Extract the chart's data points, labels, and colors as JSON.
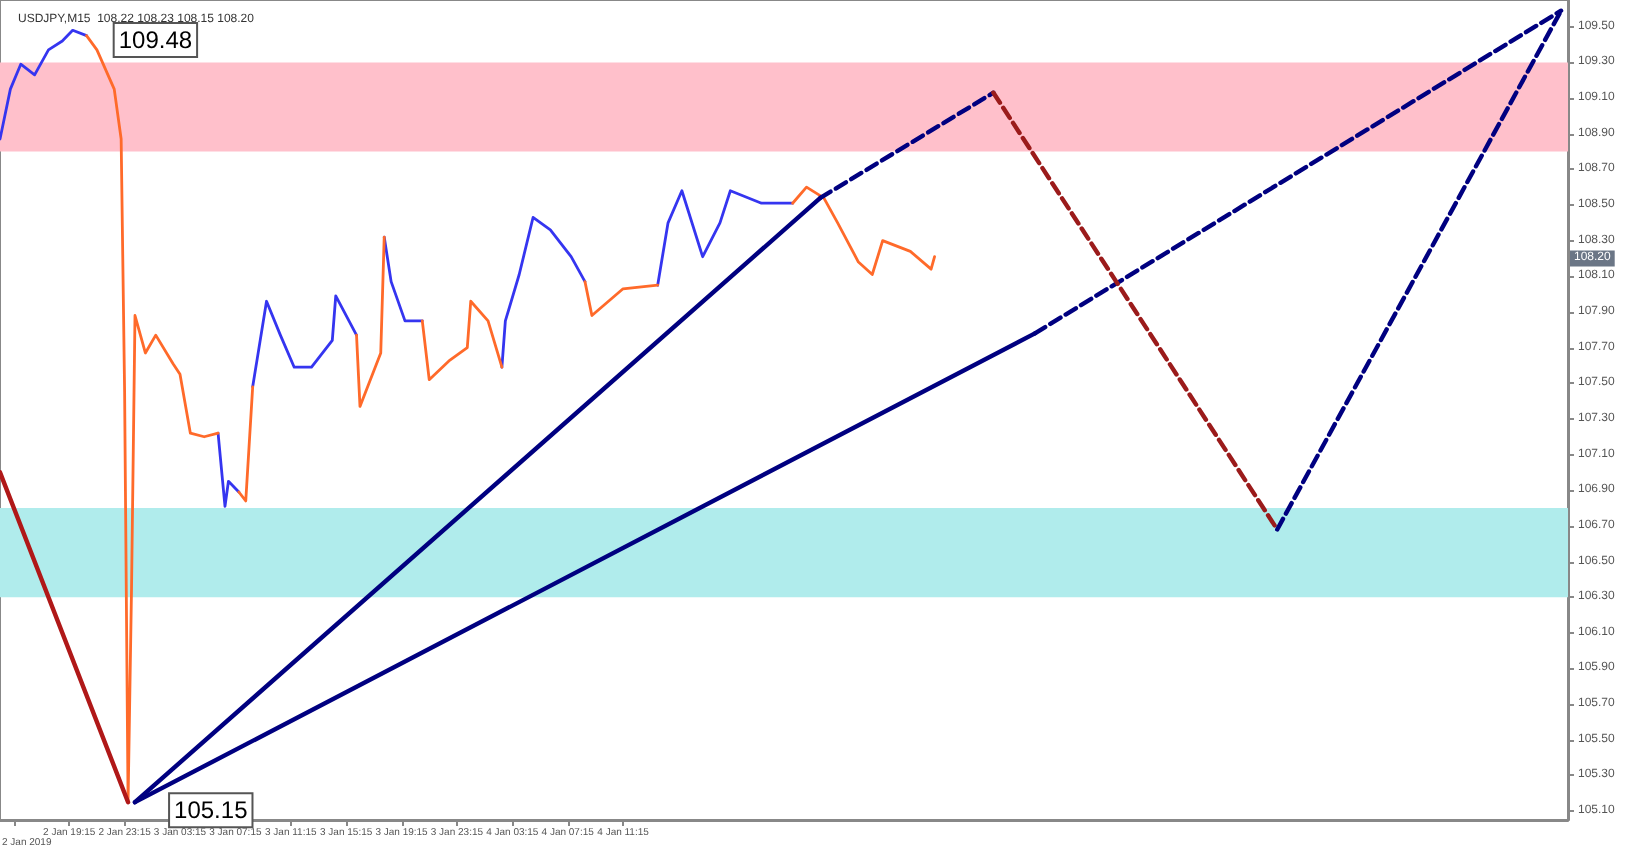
{
  "chart_data": {
    "type": "line",
    "title": "USDJPY,M15  108.22 108.23 108.15 108.20",
    "x": [
      "2019-01-02T14:15",
      "2019-01-02T15:00",
      "2019-01-02T15:45",
      "2019-01-02T16:45",
      "2019-01-02T17:45",
      "2019-01-02T18:45",
      "2019-01-02T19:30",
      "2019-01-02T20:30",
      "2019-01-02T21:15",
      "2019-01-02T22:30",
      "2019-01-02T23:00",
      "2019-01-02T23:15",
      "2019-01-02T23:30",
      "2019-01-02T23:45",
      "2019-01-03T00:00",
      "2019-01-03T00:45",
      "2019-01-03T01:30",
      "2019-01-03T02:45",
      "2019-01-03T03:15",
      "2019-01-03T04:00",
      "2019-01-03T05:00",
      "2019-01-03T06:00",
      "2019-01-03T06:30",
      "2019-01-03T06:45",
      "2019-01-03T07:30",
      "2019-01-03T08:00",
      "2019-01-03T08:30",
      "2019-01-03T09:30",
      "2019-01-03T10:30",
      "2019-01-03T11:30",
      "2019-01-03T12:45",
      "2019-01-03T14:15",
      "2019-01-03T14:30",
      "2019-01-03T16:00",
      "2019-01-03T16:15",
      "2019-01-03T17:45",
      "2019-01-03T18:00",
      "2019-01-03T18:30",
      "2019-01-03T19:30",
      "2019-01-03T20:45",
      "2019-01-03T21:15",
      "2019-01-03T22:45",
      "2019-01-04T00:00",
      "2019-01-04T00:15",
      "2019-01-04T01:30",
      "2019-01-04T02:30",
      "2019-01-04T02:45",
      "2019-01-04T03:45",
      "2019-01-04T04:45",
      "2019-01-04T06:00",
      "2019-01-04T07:30",
      "2019-01-04T08:30",
      "2019-01-04T09:00",
      "2019-01-04T11:15",
      "2019-01-04T13:45",
      "2019-01-04T14:30",
      "2019-01-04T15:30",
      "2019-01-04T17:00",
      "2019-01-04T18:15",
      "2019-01-04T19:00",
      "2019-01-04T21:15",
      "2019-01-04T23:30",
      "2019-01-05T00:30",
      "2019-01-05T01:45",
      "2019-01-05T02:45",
      "2019-01-05T04:15",
      "2019-01-05T05:15",
      "2019-01-05T06:00",
      "2019-01-05T08:00",
      "2019-01-05T09:30",
      "2019-01-05T09:45"
    ],
    "series": [
      {
        "color": "#3535f0",
        "line_style": "solid",
        "values": [
          108.87,
          109.15,
          109.29,
          109.23,
          109.37,
          109.42,
          109.48,
          109.45,
          null,
          null,
          null,
          null,
          null,
          null,
          null,
          null,
          null,
          null,
          null,
          null,
          null,
          107.22,
          106.81,
          106.95,
          106.89,
          null,
          107.48,
          107.96,
          107.77,
          107.59,
          107.59,
          107.74,
          107.99,
          107.77,
          null,
          null,
          108.32,
          108.07,
          107.85,
          107.85,
          null,
          null,
          null,
          null,
          null,
          107.59,
          107.85,
          108.11,
          108.43,
          108.36,
          108.21,
          108.07,
          null,
          null,
          108.05,
          108.4,
          108.58,
          108.21,
          108.4,
          108.58,
          108.51,
          108.51,
          null,
          null,
          null,
          null,
          null,
          null,
          null,
          null,
          null
        ]
      },
      {
        "color": "#ff6a2a",
        "line_style": "solid",
        "values": [
          null,
          null,
          null,
          null,
          null,
          null,
          null,
          109.45,
          109.37,
          109.15,
          108.87,
          107.45,
          105.15,
          106.35,
          107.88,
          107.67,
          107.77,
          107.61,
          107.55,
          107.22,
          107.2,
          107.22,
          null,
          null,
          106.89,
          106.84,
          107.48,
          null,
          null,
          null,
          null,
          null,
          null,
          107.77,
          107.37,
          107.67,
          108.32,
          null,
          null,
          107.85,
          107.52,
          107.63,
          107.7,
          107.96,
          107.85,
          107.59,
          null,
          null,
          null,
          null,
          null,
          108.07,
          107.88,
          108.03,
          108.05,
          null,
          null,
          null,
          null,
          null,
          null,
          108.51,
          108.6,
          108.54,
          108.4,
          108.18,
          108.11,
          108.3,
          108.24,
          108.14,
          108.21
        ]
      },
      {
        "color": "#000080",
        "line_style": "solid",
        "x": [
          "2019-01-03T00:00",
          "2019-01-05T01:30"
        ],
        "values": [
          105.15,
          108.54
        ]
      },
      {
        "color": "#000080",
        "line_style": "dashed",
        "x": [
          "2019-01-05T01:30",
          "2019-01-05T14:00"
        ],
        "values": [
          108.54,
          109.13
        ]
      },
      {
        "color": "#000080",
        "line_style": "solid",
        "x": [
          "2019-01-03T00:00",
          "2019-01-05T17:00"
        ],
        "values": [
          105.15,
          107.78
        ]
      },
      {
        "color": "#000080",
        "line_style": "dashed",
        "x": [
          "2019-01-05T17:00",
          "2019-01-07T07:00"
        ],
        "values": [
          107.78,
          109.59
        ]
      },
      {
        "color": "#9b1b1b",
        "line_style": "dashed",
        "x": [
          "2019-01-05T14:00",
          "2019-01-06T10:30"
        ],
        "values": [
          109.13,
          106.68
        ]
      },
      {
        "color": "#000080",
        "line_style": "dashed",
        "x": [
          "2019-01-06T10:30",
          "2019-01-07T07:00"
        ],
        "values": [
          106.68,
          109.59
        ]
      },
      {
        "color": "#b01818",
        "line_style": "solid",
        "x": [
          "2019-01-02T14:15",
          "2019-01-02T23:30"
        ],
        "values": [
          107.0,
          105.15
        ]
      }
    ],
    "bands": [
      {
        "axis": "y",
        "from": 108.8,
        "to": 109.3,
        "color": "#ffc0cb"
      },
      {
        "axis": "y",
        "from": 106.3,
        "to": 106.8,
        "color": "#b0ecec"
      }
    ],
    "annotations": [
      {
        "text": "109.48",
        "x": "2019-01-02T19:30",
        "y": 109.48
      },
      {
        "text": "105.15",
        "x": "2019-01-02T23:30",
        "y": 105.15
      },
      {
        "text": "108.20",
        "y": 108.2
      },
      "2 Jan 2019"
    ],
    "xlim": [
      "2019-01-02T14:15",
      "2019-01-07T07:30"
    ],
    "xticks": [
      {
        "value": "2019-01-02T15:15",
        "label": null
      },
      {
        "value": "2019-01-02T19:15",
        "label": "2 Jan 19:15"
      },
      {
        "value": "2019-01-02T23:15",
        "label": "2 Jan 23:15"
      },
      {
        "value": "2019-01-03T03:15",
        "label": "3 Jan 03:15"
      },
      {
        "value": "2019-01-03T07:15",
        "label": "3 Jan 07:15"
      },
      {
        "value": "2019-01-03T11:15",
        "label": "3 Jan 11:15"
      },
      {
        "value": "2019-01-03T15:15",
        "label": "3 Jan 15:15"
      },
      {
        "value": "2019-01-03T19:15",
        "label": "3 Jan 19:15"
      },
      {
        "value": "2019-01-03T23:15",
        "label": "3 Jan 23:15"
      },
      {
        "value": "2019-01-04T03:15",
        "label": "4 Jan 03:15"
      },
      {
        "value": "2019-01-04T07:15",
        "label": "4 Jan 07:15"
      },
      {
        "value": "2019-01-04T11:15",
        "label": "4 Jan 11:15"
      }
    ],
    "ylim": [
      105.05,
      109.65
    ],
    "yticks": [
      {
        "value": 105.1,
        "label": "105.10"
      },
      {
        "value": 105.3,
        "label": "105.30"
      },
      {
        "value": 105.5,
        "label": "105.50"
      },
      {
        "value": 105.7,
        "label": "105.70"
      },
      {
        "value": 105.9,
        "label": "105.90"
      },
      {
        "value": 106.1,
        "label": "106.10"
      },
      {
        "value": 106.3,
        "label": "106.30"
      },
      {
        "value": 106.5,
        "label": "106.50"
      },
      {
        "value": 106.7,
        "label": "106.70"
      },
      {
        "value": 106.9,
        "label": "106.90"
      },
      {
        "value": 107.1,
        "label": "107.10"
      },
      {
        "value": 107.3,
        "label": "107.30"
      },
      {
        "value": 107.5,
        "label": "107.50"
      },
      {
        "value": 107.7,
        "label": "107.70"
      },
      {
        "value": 107.9,
        "label": "107.90"
      },
      {
        "value": 108.1,
        "label": "108.10"
      },
      {
        "value": 108.3,
        "label": "108.30"
      },
      {
        "value": 108.5,
        "label": "108.50"
      },
      {
        "value": 108.7,
        "label": "108.70"
      },
      {
        "value": 108.9,
        "label": "108.90"
      },
      {
        "value": 109.1,
        "label": "109.10"
      },
      {
        "value": 109.3,
        "label": "109.30"
      },
      {
        "value": 109.5,
        "label": "109.50"
      }
    ]
  }
}
